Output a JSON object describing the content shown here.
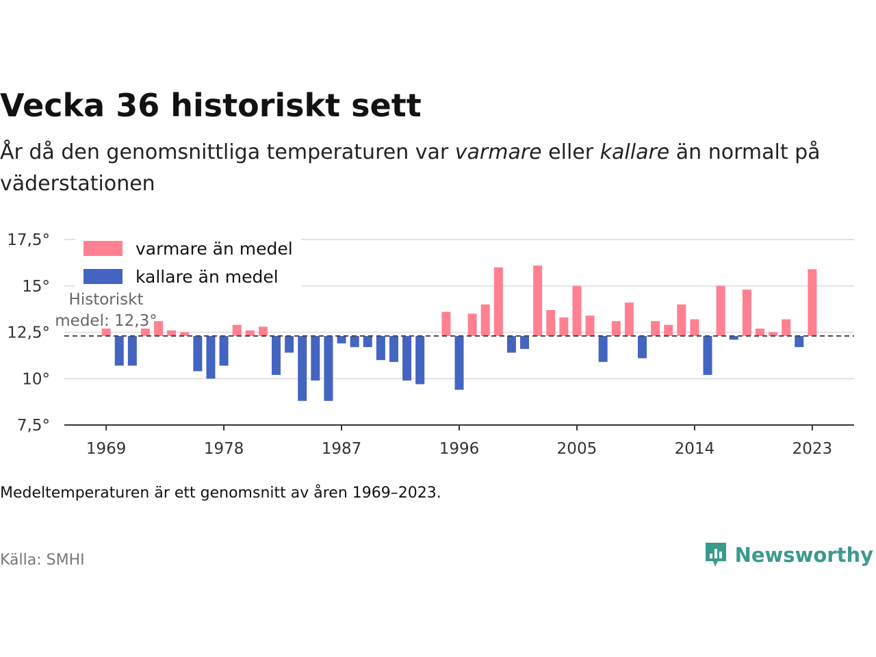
{
  "header": {
    "title": "Vecka 36 historiskt sett",
    "subtitle_1": "År då den genomsnittliga temperaturen var ",
    "subtitle_warm": "varmare",
    "subtitle_2": " eller ",
    "subtitle_cold": "kallare",
    "subtitle_3": " än normalt på väderstationen"
  },
  "footer": {
    "note": "Medeltemperaturen är ett genomsnitt av åren 1969–2023.",
    "source": "Källa: SMHI",
    "brand": "Newsworthy"
  },
  "colors": {
    "warm": "#ff8091",
    "cold": "#4364c1",
    "brand": "#3a9a8e"
  },
  "chart_data": {
    "type": "bar",
    "title": "Vecka 36 historiskt sett",
    "subtitle": "År då den genomsnittliga temperaturen var varmare eller kallare än normalt på väderstationen",
    "xlabel": "",
    "ylabel": "",
    "baseline": 12.3,
    "ylim": [
      7.5,
      17.5
    ],
    "yticks": [
      7.5,
      10,
      12.5,
      15,
      17.5
    ],
    "ytick_labels": [
      "7,5°",
      "10°",
      "12,5°",
      "15°",
      "17,5°"
    ],
    "xticks": [
      1969,
      1978,
      1987,
      1996,
      2005,
      2014,
      2023
    ],
    "xlim": [
      1965.8,
      2026.2
    ],
    "grid": true,
    "legend": {
      "placement": "top-left",
      "warm": "varmare än medel",
      "cold": "kallare än medel"
    },
    "annotation": {
      "line1": "Historiskt",
      "line2": "medel: 12,3°"
    },
    "x": [
      1969,
      1970,
      1971,
      1972,
      1973,
      1974,
      1975,
      1976,
      1977,
      1978,
      1979,
      1980,
      1981,
      1982,
      1983,
      1984,
      1985,
      1986,
      1987,
      1988,
      1989,
      1990,
      1991,
      1992,
      1993,
      1994,
      1995,
      1996,
      1997,
      1998,
      1999,
      2000,
      2001,
      2002,
      2003,
      2004,
      2005,
      2006,
      2007,
      2008,
      2009,
      2010,
      2011,
      2012,
      2013,
      2014,
      2015,
      2016,
      2017,
      2018,
      2019,
      2020,
      2021,
      2022,
      2023
    ],
    "values": [
      12.7,
      10.7,
      10.7,
      12.7,
      13.1,
      12.6,
      12.5,
      10.4,
      10.0,
      10.7,
      12.9,
      12.6,
      12.8,
      10.2,
      11.4,
      8.8,
      9.9,
      8.8,
      11.9,
      11.7,
      11.7,
      11.0,
      10.9,
      9.9,
      9.7,
      null,
      13.6,
      9.4,
      13.5,
      14.0,
      16.0,
      11.4,
      11.6,
      16.1,
      13.7,
      13.3,
      15.0,
      13.4,
      10.9,
      13.1,
      14.1,
      11.1,
      13.1,
      12.9,
      14.0,
      13.2,
      10.2,
      15.0,
      12.1,
      14.8,
      12.7,
      12.5,
      13.2,
      11.7,
      15.9
    ]
  }
}
